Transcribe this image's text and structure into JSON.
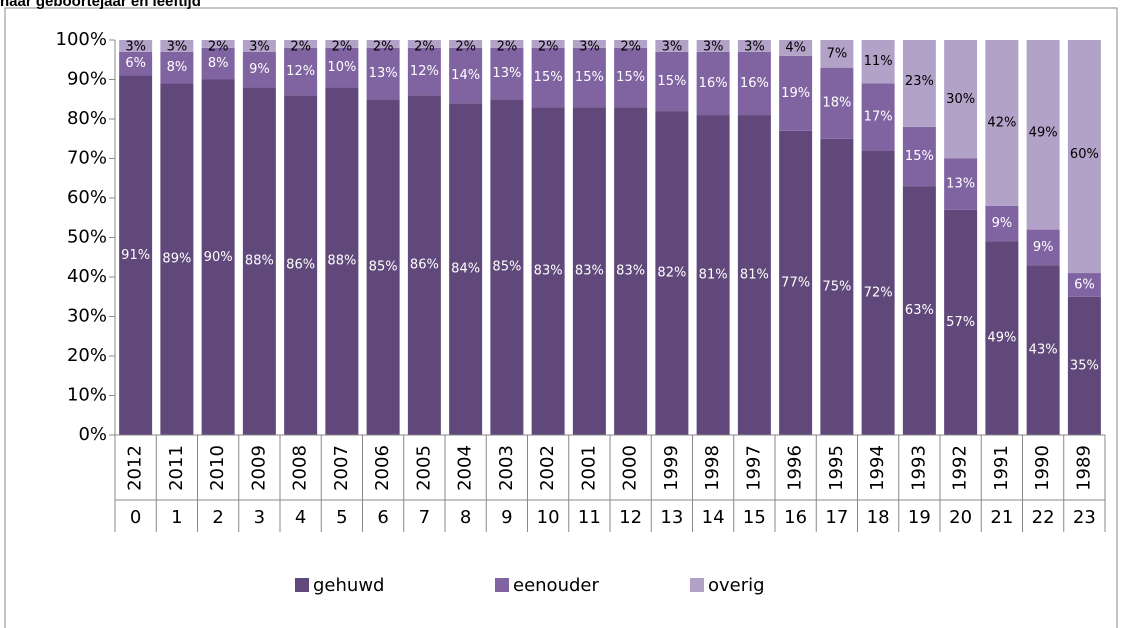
{
  "chart_data": {
    "type": "stacked_bar",
    "title": "naar geboortejaar en leeftijd",
    "categories": [
      "2012",
      "2011",
      "2010",
      "2009",
      "2008",
      "2007",
      "2006",
      "2005",
      "2004",
      "2003",
      "2002",
      "2001",
      "2000",
      "1999",
      "1998",
      "1997",
      "1996",
      "1995",
      "1994",
      "1993",
      "1992",
      "1991",
      "1990",
      "1989"
    ],
    "subcategories": [
      "0",
      "1",
      "2",
      "3",
      "4",
      "5",
      "6",
      "7",
      "8",
      "9",
      "10",
      "11",
      "12",
      "13",
      "14",
      "15",
      "16",
      "17",
      "18",
      "19",
      "20",
      "21",
      "22",
      "23"
    ],
    "series": [
      {
        "name": "gehuwd",
        "color": "#60497a",
        "values": [
          91,
          89,
          90,
          88,
          86,
          88,
          85,
          86,
          84,
          85,
          83,
          83,
          83,
          82,
          81,
          81,
          77,
          75,
          72,
          63,
          57,
          49,
          43,
          35
        ],
        "value_labels": [
          "91%",
          "89%",
          "90%",
          "88%",
          "86%",
          "88%",
          "85%",
          "86%",
          "84%",
          "85%",
          "83%",
          "83%",
          "83%",
          "82%",
          "81%",
          "81%",
          "77%",
          "75%",
          "72%",
          "63%",
          "57%",
          "49%",
          "43%",
          "35%"
        ]
      },
      {
        "name": "eenouder",
        "color": "#8064a2",
        "values": [
          6,
          8,
          8,
          9,
          12,
          10,
          13,
          12,
          14,
          13,
          15,
          15,
          15,
          15,
          16,
          16,
          19,
          18,
          17,
          15,
          13,
          9,
          9,
          6
        ],
        "value_labels": [
          "6%",
          "8%",
          "8%",
          "9%",
          "12%",
          "10%",
          "13%",
          "12%",
          "14%",
          "13%",
          "15%",
          "15%",
          "15%",
          "15%",
          "16%",
          "16%",
          "19%",
          "18%",
          "17%",
          "15%",
          "13%",
          "9%",
          "9%",
          "6%"
        ]
      },
      {
        "name": "overig",
        "color": "#b3a2c7",
        "values": [
          3,
          3,
          2,
          3,
          2,
          2,
          2,
          2,
          2,
          2,
          2,
          3,
          2,
          3,
          3,
          3,
          4,
          7,
          11,
          23,
          30,
          42,
          49,
          60
        ],
        "value_labels": [
          "3%",
          "3%",
          "2%",
          "3%",
          "2%",
          "2%",
          "2%",
          "2%",
          "2%",
          "2%",
          "2%",
          "3%",
          "2%",
          "3%",
          "3%",
          "3%",
          "4%",
          "7%",
          "11%",
          "23%",
          "30%",
          "42%",
          "49%",
          "60%"
        ]
      }
    ],
    "ylim": [
      0,
      100
    ],
    "yticks": [
      {
        "value": 0,
        "label": "0%"
      },
      {
        "value": 10,
        "label": "10%"
      },
      {
        "value": 20,
        "label": "20%"
      },
      {
        "value": 30,
        "label": "30%"
      },
      {
        "value": 40,
        "label": "40%"
      },
      {
        "value": 50,
        "label": "50%"
      },
      {
        "value": 60,
        "label": "60%"
      },
      {
        "value": 70,
        "label": "70%"
      },
      {
        "value": 80,
        "label": "80%"
      },
      {
        "value": 90,
        "label": "90%"
      },
      {
        "value": 100,
        "label": "100%"
      }
    ],
    "legend": "bottom"
  }
}
